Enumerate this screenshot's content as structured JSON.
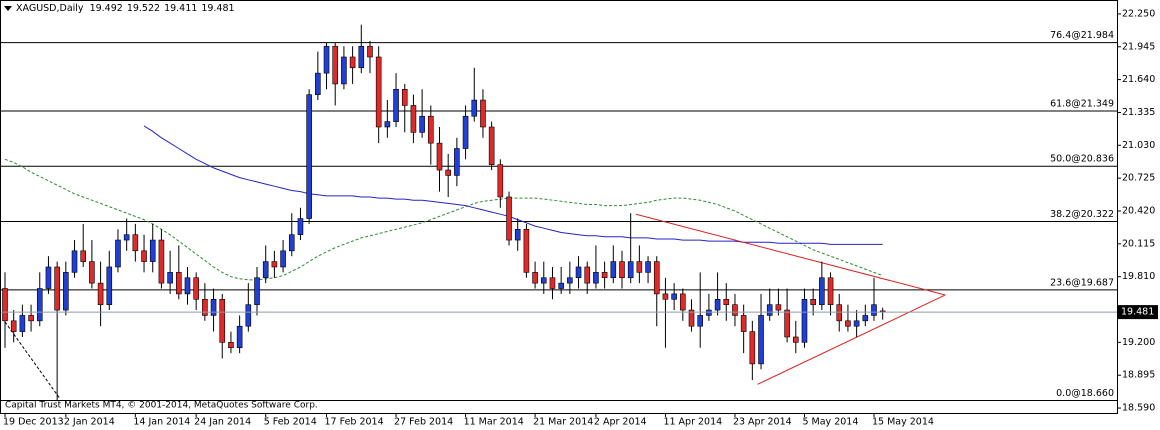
{
  "chart_data": {
    "type": "candlestick",
    "title": "XAGUSD,Daily",
    "footer": "Capital Trust Markets MT4, © 2001-2014, MetaQuotes Software Corp.",
    "categories": [
      "19 Dec 2013",
      null,
      null,
      null,
      null,
      null,
      null,
      "2 Jan 2014",
      null,
      null,
      null,
      null,
      null,
      null,
      null,
      "14 Jan 2014",
      null,
      null,
      null,
      null,
      null,
      null,
      "24 Jan 2014",
      null,
      null,
      null,
      null,
      null,
      null,
      null,
      "5 Feb 2014",
      null,
      null,
      null,
      null,
      null,
      null,
      "17 Feb 2014",
      null,
      null,
      null,
      null,
      null,
      null,
      null,
      "27 Feb 2014",
      null,
      null,
      null,
      null,
      null,
      null,
      null,
      "11 Mar 2014",
      null,
      null,
      null,
      null,
      null,
      null,
      null,
      "21 Mar 2014",
      null,
      null,
      null,
      null,
      null,
      null,
      "2 Apr 2014",
      null,
      null,
      null,
      null,
      null,
      null,
      null,
      "11 Apr 2014",
      null,
      null,
      null,
      null,
      null,
      null,
      null,
      "23 Apr 2014",
      null,
      null,
      null,
      null,
      null,
      null,
      null,
      "5 May 2014",
      null,
      null,
      null,
      null,
      null,
      null,
      null,
      "15 May 2014",
      null
    ],
    "open": [
      19.7,
      19.4,
      19.3,
      19.45,
      19.4,
      19.7,
      19.9,
      19.5,
      19.85,
      20.05,
      19.95,
      19.75,
      19.55,
      19.9,
      20.15,
      20.2,
      20.05,
      19.95,
      20.15,
      19.75,
      19.85,
      19.65,
      19.8,
      19.6,
      19.45,
      19.6,
      19.2,
      19.15,
      19.35,
      19.55,
      19.8,
      19.95,
      19.9,
      20.05,
      20.2,
      20.35,
      21.5,
      21.7,
      21.95,
      21.6,
      21.85,
      21.75,
      21.95,
      21.85,
      21.2,
      21.25,
      21.55,
      21.4,
      21.15,
      21.3,
      21.05,
      20.8,
      20.75,
      21.0,
      21.3,
      21.45,
      21.2,
      20.85,
      20.55,
      20.15,
      20.25,
      19.85,
      19.75,
      19.8,
      19.7,
      19.75,
      19.8,
      19.9,
      19.75,
      19.85,
      19.8,
      19.95,
      19.8,
      19.95,
      19.85,
      19.95,
      19.65,
      19.6,
      19.65,
      19.5,
      19.35,
      19.45,
      19.5,
      19.6,
      19.55,
      19.45,
      19.3,
      19.0,
      19.45,
      19.55,
      19.5,
      19.25,
      19.2,
      19.6,
      19.55,
      19.8,
      19.55,
      19.4,
      19.35,
      19.4,
      19.45,
      19.492
    ],
    "high": [
      19.85,
      19.5,
      19.55,
      19.55,
      19.85,
      20.0,
      19.95,
      19.95,
      20.15,
      20.3,
      20.15,
      19.95,
      20.05,
      20.25,
      20.35,
      20.3,
      20.2,
      20.3,
      20.25,
      20.05,
      20.1,
      19.9,
      19.85,
      19.75,
      19.7,
      19.65,
      19.3,
      19.45,
      19.75,
      19.9,
      20.1,
      20.05,
      20.15,
      20.4,
      20.45,
      21.55,
      21.9,
      21.98,
      21.98,
      21.95,
      21.95,
      22.15,
      22.0,
      21.95,
      21.45,
      21.7,
      21.6,
      21.5,
      21.55,
      21.4,
      21.2,
      20.95,
      21.1,
      21.4,
      21.75,
      21.55,
      21.25,
      20.9,
      20.6,
      20.35,
      20.3,
      19.95,
      19.95,
      19.9,
      19.9,
      19.95,
      20.0,
      19.95,
      20.1,
      19.95,
      20.1,
      20.05,
      20.4,
      20.1,
      20.0,
      20.0,
      19.8,
      19.75,
      19.7,
      19.6,
      19.85,
      19.65,
      19.85,
      19.75,
      19.65,
      19.55,
      19.4,
      19.65,
      19.7,
      19.7,
      19.7,
      19.4,
      19.7,
      19.7,
      19.95,
      19.85,
      19.65,
      19.55,
      19.5,
      19.55,
      19.8,
      19.522
    ],
    "low": [
      19.15,
      19.2,
      19.25,
      19.3,
      19.35,
      19.65,
      18.66,
      19.45,
      19.8,
      19.9,
      19.7,
      19.35,
      19.5,
      19.85,
      20.05,
      19.95,
      19.85,
      19.85,
      19.7,
      19.65,
      19.6,
      19.55,
      19.5,
      19.4,
      19.3,
      19.05,
      19.1,
      19.1,
      19.3,
      19.45,
      19.75,
      19.8,
      19.85,
      20.0,
      20.15,
      20.3,
      21.45,
      21.55,
      21.4,
      21.55,
      21.6,
      21.7,
      21.7,
      21.05,
      21.1,
      21.2,
      21.15,
      21.05,
      21.1,
      20.85,
      20.6,
      20.55,
      20.65,
      20.9,
      21.25,
      21.1,
      20.8,
      20.45,
      20.1,
      20.05,
      19.8,
      19.7,
      19.65,
      19.6,
      19.65,
      19.65,
      19.7,
      19.65,
      19.7,
      19.7,
      19.75,
      19.7,
      19.75,
      19.75,
      19.75,
      19.35,
      19.15,
      19.5,
      19.4,
      19.3,
      19.15,
      19.4,
      19.45,
      19.4,
      19.35,
      19.1,
      18.85,
      18.95,
      19.4,
      19.45,
      19.2,
      19.1,
      19.15,
      19.45,
      19.5,
      19.45,
      19.3,
      19.3,
      19.25,
      19.35,
      19.4,
      19.411
    ],
    "close": [
      19.4,
      19.3,
      19.45,
      19.4,
      19.7,
      19.9,
      19.5,
      19.85,
      20.05,
      19.95,
      19.75,
      19.55,
      19.9,
      20.15,
      20.2,
      20.05,
      19.95,
      20.15,
      19.75,
      19.85,
      19.65,
      19.8,
      19.6,
      19.45,
      19.6,
      19.2,
      19.15,
      19.35,
      19.55,
      19.8,
      19.95,
      19.9,
      20.05,
      20.2,
      20.35,
      21.5,
      21.7,
      21.95,
      21.6,
      21.85,
      21.75,
      21.95,
      21.85,
      21.2,
      21.25,
      21.55,
      21.4,
      21.15,
      21.3,
      21.05,
      20.8,
      20.75,
      21.0,
      21.3,
      21.45,
      21.2,
      20.85,
      20.55,
      20.15,
      20.25,
      19.85,
      19.75,
      19.8,
      19.7,
      19.75,
      19.8,
      19.9,
      19.75,
      19.85,
      19.8,
      19.95,
      19.8,
      19.95,
      19.85,
      19.95,
      19.65,
      19.6,
      19.65,
      19.5,
      19.35,
      19.45,
      19.5,
      19.6,
      19.55,
      19.45,
      19.3,
      19.0,
      19.45,
      19.55,
      19.5,
      19.25,
      19.2,
      19.6,
      19.55,
      19.8,
      19.55,
      19.4,
      19.35,
      19.4,
      19.45,
      19.55,
      19.481
    ],
    "up_color": "#1f3fd6",
    "down_color": "#e02a2a",
    "wick_color": "#000000",
    "ylim": [
      18.544,
      22.37
    ],
    "yticks": [
      {
        "value": 22.25,
        "label": "22.250"
      },
      {
        "value": 21.945,
        "label": "21.945"
      },
      {
        "value": 21.64,
        "label": "21.640"
      },
      {
        "value": 21.335,
        "label": "21.335"
      },
      {
        "value": 21.03,
        "label": "21.030"
      },
      {
        "value": 20.725,
        "label": "20.725"
      },
      {
        "value": 20.42,
        "label": "20.420"
      },
      {
        "value": 20.115,
        "label": "20.115"
      },
      {
        "value": 19.81,
        "label": "19.810"
      },
      {
        "value": 19.2,
        "label": "19.200"
      },
      {
        "value": 18.895,
        "label": "18.895"
      },
      {
        "value": 18.59,
        "label": "18.590"
      }
    ],
    "overlays": [
      {
        "type": "line",
        "color": "#2e8b2e",
        "dashed": true,
        "values": [
          20.9,
          20.87,
          20.83,
          20.78,
          20.74,
          20.7,
          20.66,
          20.62,
          20.58,
          20.55,
          20.52,
          20.49,
          20.46,
          20.43,
          20.4,
          20.37,
          20.34,
          20.3,
          20.25,
          20.2,
          20.14,
          20.08,
          20.02,
          19.96,
          19.9,
          19.85,
          19.81,
          19.79,
          19.78,
          19.78,
          19.79,
          19.8,
          19.82,
          19.86,
          19.9,
          19.95,
          20.0,
          20.04,
          20.08,
          20.11,
          20.14,
          20.17,
          20.19,
          20.21,
          20.23,
          20.25,
          20.27,
          20.29,
          20.31,
          20.34,
          20.37,
          20.4,
          20.43,
          20.46,
          20.49,
          20.51,
          20.52,
          20.53,
          20.54,
          20.54,
          20.54,
          20.54,
          20.53,
          20.52,
          20.51,
          20.5,
          20.49,
          20.48,
          20.48,
          20.47,
          20.47,
          20.47,
          20.48,
          20.49,
          20.5,
          20.52,
          20.53,
          20.54,
          20.54,
          20.53,
          20.52,
          20.5,
          20.48,
          20.45,
          20.42,
          20.38,
          20.34,
          20.3,
          20.26,
          20.22,
          20.18,
          20.14,
          20.1,
          20.06,
          20.03,
          20.0,
          19.97,
          19.94,
          19.91,
          19.88,
          19.85,
          19.82
        ]
      },
      {
        "type": "line",
        "color": "#2323c8",
        "dashed": false,
        "values": [
          null,
          null,
          null,
          null,
          null,
          null,
          null,
          null,
          null,
          null,
          null,
          null,
          null,
          null,
          null,
          null,
          21.21,
          21.16,
          21.1,
          21.05,
          21.0,
          20.95,
          20.9,
          20.86,
          20.82,
          20.79,
          20.76,
          20.73,
          20.71,
          20.69,
          20.67,
          20.65,
          20.63,
          20.61,
          20.6,
          20.58,
          20.57,
          20.56,
          20.56,
          20.56,
          20.56,
          20.55,
          20.55,
          20.54,
          20.54,
          20.53,
          20.53,
          20.52,
          20.52,
          20.51,
          20.5,
          20.49,
          20.48,
          20.47,
          20.45,
          20.43,
          20.41,
          20.39,
          20.37,
          20.34,
          20.31,
          20.28,
          20.26,
          20.24,
          20.22,
          20.21,
          20.2,
          20.19,
          20.19,
          20.18,
          20.18,
          20.18,
          20.17,
          20.17,
          20.17,
          20.16,
          20.16,
          20.16,
          20.15,
          20.15,
          20.15,
          20.14,
          20.14,
          20.14,
          20.14,
          20.13,
          20.13,
          20.13,
          20.13,
          20.12,
          20.12,
          20.12,
          20.12,
          20.12,
          20.12,
          20.11,
          20.11,
          20.11,
          20.11,
          20.11,
          20.11,
          20.11
        ]
      }
    ],
    "levels": [
      {
        "value": 21.984,
        "label": "76.4@21.984"
      },
      {
        "value": 21.349,
        "label": "61.8@21.349"
      },
      {
        "value": 20.836,
        "label": "50.0@20.836"
      },
      {
        "value": 20.322,
        "label": "38.2@20.322"
      },
      {
        "value": 19.687,
        "label": "23.6@19.687"
      },
      {
        "value": 18.66,
        "label": "0.0@18.660"
      }
    ],
    "trendlines": [
      {
        "x": [
          72.6,
          108.2
        ],
        "y": [
          20.39,
          19.64
        ],
        "color": "#e02020",
        "dashed": false
      },
      {
        "x": [
          86.6,
          108.2
        ],
        "y": [
          18.81,
          19.64
        ],
        "color": "#e02020",
        "dashed": false
      },
      {
        "x": [
          0,
          6.3
        ],
        "y": [
          19.39,
          18.68
        ],
        "color": "#000000",
        "dashed": true
      }
    ],
    "price_line_color": "#8a9aa8"
  }
}
